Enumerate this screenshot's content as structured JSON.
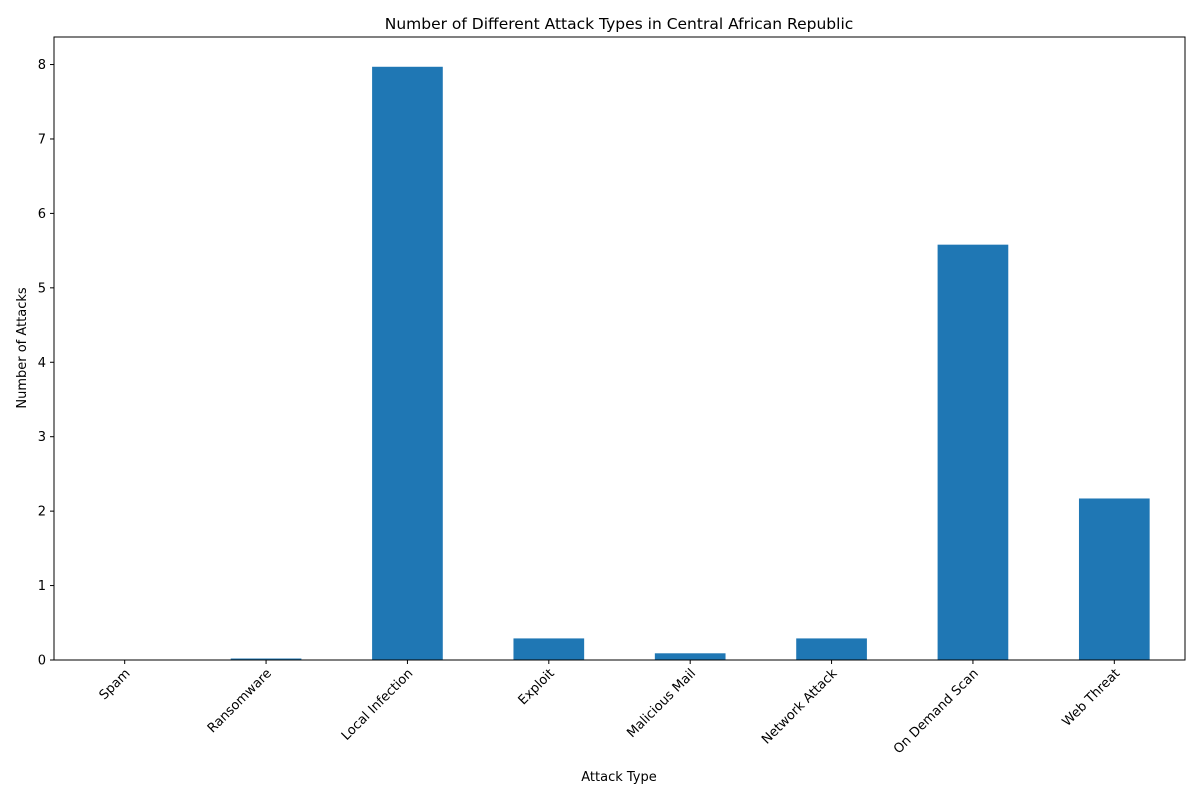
{
  "chart_data": {
    "type": "bar",
    "title": "Number of Different Attack Types in Central African Republic",
    "xlabel": "Attack Type",
    "ylabel": "Number of Attacks",
    "categories": [
      "Spam",
      "Ransomware",
      "Local Infection",
      "Exploit",
      "Malicious Mail",
      "Network Attack",
      "On Demand Scan",
      "Web Threat"
    ],
    "values": [
      0,
      0.02,
      7.97,
      0.29,
      0.09,
      0.29,
      5.58,
      2.17
    ],
    "ylim": [
      0,
      8.37
    ],
    "yticks": [
      0,
      1,
      2,
      3,
      4,
      5,
      6,
      7,
      8
    ],
    "bar_color": "#1f77b4",
    "grid": false,
    "legend": "none"
  }
}
